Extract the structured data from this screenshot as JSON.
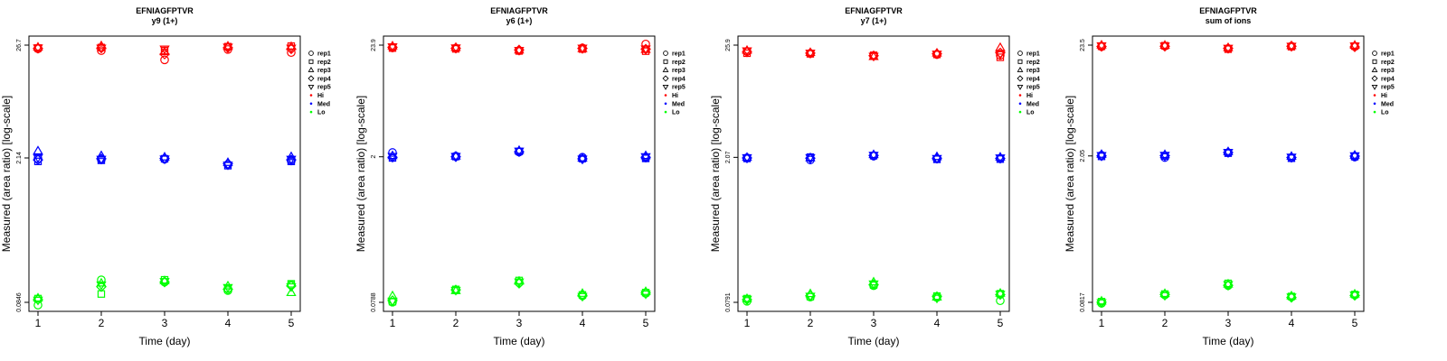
{
  "figure": {
    "levels": [
      {
        "name": "Hi",
        "color": "#ff0000"
      },
      {
        "name": "Med",
        "color": "#0000ff"
      },
      {
        "name": "Lo",
        "color": "#00ff00"
      }
    ],
    "replicates": [
      {
        "name": "rep1",
        "marker": "circle"
      },
      {
        "name": "rep2",
        "marker": "square"
      },
      {
        "name": "rep3",
        "marker": "triangle-up"
      },
      {
        "name": "rep4",
        "marker": "diamond"
      },
      {
        "name": "rep5",
        "marker": "triangle-down"
      }
    ]
  },
  "chart_data": [
    {
      "type": "scatter",
      "title": "EFNIAGFPTVR",
      "subtitle": "y9 (1+)",
      "xlabel": "Time (day)",
      "ylabel": "Measured (area ratio) [log-scale]",
      "yscale": "log",
      "ylim": [
        0.0846,
        26.7
      ],
      "yticks": [
        "0.0846",
        "2.14",
        "26.7"
      ],
      "x": [
        1,
        2,
        3,
        4,
        5
      ],
      "legend": [
        "rep1",
        "rep2",
        "rep3",
        "rep4",
        "rep5",
        "Hi",
        "Med",
        "Lo"
      ],
      "legend_position": "right",
      "series": [
        {
          "level": "Hi",
          "replicate": "rep1",
          "values": [
            24.6,
            23.6,
            19.2,
            24.2,
            22.6
          ]
        },
        {
          "level": "Hi",
          "replicate": "rep2",
          "values": [
            25.0,
            25.3,
            23.6,
            25.8,
            26.1
          ]
        },
        {
          "level": "Hi",
          "replicate": "rep3",
          "values": [
            25.5,
            26.3,
            23.0,
            26.1,
            25.8
          ]
        },
        {
          "level": "Hi",
          "replicate": "rep4",
          "values": [
            24.8,
            25.0,
            21.8,
            25.2,
            24.5
          ]
        },
        {
          "level": "Hi",
          "replicate": "rep5",
          "values": [
            25.1,
            25.0,
            24.5,
            25.6,
            25.0
          ]
        },
        {
          "level": "Med",
          "replicate": "rep1",
          "values": [
            2.1,
            2.06,
            2.08,
            1.85,
            2.0
          ]
        },
        {
          "level": "Med",
          "replicate": "rep2",
          "values": [
            1.98,
            2.03,
            2.1,
            1.8,
            1.98
          ]
        },
        {
          "level": "Med",
          "replicate": "rep3",
          "values": [
            2.5,
            2.25,
            2.18,
            1.93,
            2.2
          ]
        },
        {
          "level": "Med",
          "replicate": "rep4",
          "values": [
            2.05,
            2.1,
            2.12,
            1.88,
            2.05
          ]
        },
        {
          "level": "Med",
          "replicate": "rep5",
          "values": [
            2.15,
            2.08,
            2.09,
            1.83,
            2.08
          ]
        },
        {
          "level": "Lo",
          "replicate": "rep1",
          "values": [
            0.0795,
            0.14,
            0.133,
            0.11,
            0.125
          ]
        },
        {
          "level": "Lo",
          "replicate": "rep2",
          "values": [
            0.092,
            0.102,
            0.14,
            0.115,
            0.128
          ]
        },
        {
          "level": "Lo",
          "replicate": "rep3",
          "values": [
            0.093,
            0.13,
            0.137,
            0.122,
            0.105
          ]
        },
        {
          "level": "Lo",
          "replicate": "rep4",
          "values": [
            0.09,
            0.12,
            0.133,
            0.113,
            0.122
          ]
        },
        {
          "level": "Lo",
          "replicate": "rep5",
          "values": [
            0.089,
            0.125,
            0.135,
            0.118,
            0.12
          ]
        }
      ]
    },
    {
      "type": "scatter",
      "title": "EFNIAGFPTVR",
      "subtitle": "y6 (1+)",
      "xlabel": "Time (day)",
      "ylabel": "Measured (area ratio) [log-scale]",
      "yscale": "log",
      "ylim": [
        0.0788,
        23.9
      ],
      "yticks": [
        "0.0788",
        "2",
        "23.9"
      ],
      "x": [
        1,
        2,
        3,
        4,
        5
      ],
      "legend": [
        "rep1",
        "rep2",
        "rep3",
        "rep4",
        "rep5",
        "Hi",
        "Med",
        "Lo"
      ],
      "legend_position": "right",
      "series": [
        {
          "level": "Hi",
          "replicate": "rep1",
          "values": [
            22.5,
            22.4,
            21.1,
            22.5,
            24.5
          ]
        },
        {
          "level": "Hi",
          "replicate": "rep2",
          "values": [
            22.4,
            22.0,
            21.0,
            21.9,
            20.9
          ]
        },
        {
          "level": "Hi",
          "replicate": "rep3",
          "values": [
            23.4,
            22.7,
            21.4,
            22.1,
            21.7
          ]
        },
        {
          "level": "Hi",
          "replicate": "rep4",
          "values": [
            22.8,
            22.3,
            21.5,
            22.2,
            21.9
          ]
        },
        {
          "level": "Hi",
          "replicate": "rep5",
          "values": [
            23.1,
            22.5,
            21.3,
            22.4,
            22.0
          ]
        },
        {
          "level": "Med",
          "replicate": "rep1",
          "values": [
            2.2,
            2.03,
            2.22,
            1.98,
            1.95
          ]
        },
        {
          "level": "Med",
          "replicate": "rep2",
          "values": [
            1.95,
            2.01,
            2.25,
            1.92,
            1.93
          ]
        },
        {
          "level": "Med",
          "replicate": "rep3",
          "values": [
            2.05,
            2.03,
            2.3,
            1.94,
            2.05
          ]
        },
        {
          "level": "Med",
          "replicate": "rep4",
          "values": [
            1.98,
            2.0,
            2.24,
            1.91,
            1.98
          ]
        },
        {
          "level": "Med",
          "replicate": "rep5",
          "values": [
            2.02,
            2.02,
            2.27,
            1.9,
            2.01
          ]
        },
        {
          "level": "Lo",
          "replicate": "rep1",
          "values": [
            0.079,
            0.103,
            0.122,
            0.091,
            0.096
          ]
        },
        {
          "level": "Lo",
          "replicate": "rep2",
          "values": [
            0.08,
            0.105,
            0.128,
            0.093,
            0.098
          ]
        },
        {
          "level": "Lo",
          "replicate": "rep3",
          "values": [
            0.091,
            0.102,
            0.126,
            0.096,
            0.1
          ]
        },
        {
          "level": "Lo",
          "replicate": "rep4",
          "values": [
            0.082,
            0.104,
            0.12,
            0.092,
            0.097
          ]
        },
        {
          "level": "Lo",
          "replicate": "rep5",
          "values": [
            0.081,
            0.103,
            0.124,
            0.09,
            0.095
          ]
        }
      ]
    },
    {
      "type": "scatter",
      "title": "EFNIAGFPTVR",
      "subtitle": "y7 (1+)",
      "xlabel": "Time (day)",
      "ylabel": "Measured (area ratio) [log-scale]",
      "yscale": "log",
      "ylim": [
        0.0791,
        25.9
      ],
      "yticks": [
        "0.0791",
        "2.07",
        "25.9"
      ],
      "x": [
        1,
        2,
        3,
        4,
        5
      ],
      "legend": [
        "rep1",
        "rep2",
        "rep3",
        "rep4",
        "rep5",
        "Hi",
        "Med",
        "Lo"
      ],
      "legend_position": "right",
      "series": [
        {
          "level": "Hi",
          "replicate": "rep1",
          "values": [
            22.5,
            21.5,
            20.3,
            21.0,
            20.6
          ]
        },
        {
          "level": "Hi",
          "replicate": "rep2",
          "values": [
            21.6,
            21.3,
            20.6,
            21.0,
            19.7
          ]
        },
        {
          "level": "Hi",
          "replicate": "rep3",
          "values": [
            23.0,
            21.9,
            20.0,
            21.6,
            24.5
          ]
        },
        {
          "level": "Hi",
          "replicate": "rep4",
          "values": [
            22.2,
            21.6,
            20.4,
            21.3,
            21.8
          ]
        },
        {
          "level": "Hi",
          "replicate": "rep5",
          "values": [
            22.8,
            21.7,
            20.2,
            21.2,
            21.0
          ]
        },
        {
          "level": "Med",
          "replicate": "rep1",
          "values": [
            2.05,
            1.95,
            2.13,
            2.01,
            2.01
          ]
        },
        {
          "level": "Med",
          "replicate": "rep2",
          "values": [
            2.02,
            2.08,
            2.15,
            1.98,
            1.99
          ]
        },
        {
          "level": "Med",
          "replicate": "rep3",
          "values": [
            2.07,
            2.05,
            2.2,
            2.1,
            2.08
          ]
        },
        {
          "level": "Med",
          "replicate": "rep4",
          "values": [
            2.04,
            2.03,
            2.16,
            2.03,
            2.02
          ]
        },
        {
          "level": "Med",
          "replicate": "rep5",
          "values": [
            2.06,
            2.06,
            2.17,
            2.02,
            2.05
          ]
        },
        {
          "level": "Lo",
          "replicate": "rep1",
          "values": [
            0.081,
            0.089,
            0.115,
            0.088,
            0.082
          ]
        },
        {
          "level": "Lo",
          "replicate": "rep2",
          "values": [
            0.086,
            0.09,
            0.117,
            0.091,
            0.096
          ]
        },
        {
          "level": "Lo",
          "replicate": "rep3",
          "values": [
            0.086,
            0.096,
            0.125,
            0.089,
            0.097
          ]
        },
        {
          "level": "Lo",
          "replicate": "rep4",
          "values": [
            0.084,
            0.092,
            0.118,
            0.09,
            0.094
          ]
        },
        {
          "level": "Lo",
          "replicate": "rep5",
          "values": [
            0.085,
            0.091,
            0.12,
            0.087,
            0.095
          ]
        }
      ]
    },
    {
      "type": "scatter",
      "title": "EFNIAGFPTVR",
      "subtitle": "sum of ions",
      "xlabel": "Time (day)",
      "ylabel": "Measured (area ratio) [log-scale]",
      "yscale": "log",
      "ylim": [
        0.0817,
        23.5
      ],
      "yticks": [
        "0.0817",
        "2.05",
        "23.5"
      ],
      "x": [
        1,
        2,
        3,
        4,
        5
      ],
      "legend": [
        "rep1",
        "rep2",
        "rep3",
        "rep4",
        "rep5",
        "Hi",
        "Med",
        "Lo"
      ],
      "legend_position": "right",
      "series": [
        {
          "level": "Hi",
          "replicate": "rep1",
          "values": [
            22.7,
            23.0,
            21.8,
            23.0,
            22.8
          ]
        },
        {
          "level": "Hi",
          "replicate": "rep2",
          "values": [
            22.9,
            23.2,
            21.5,
            22.7,
            23.0
          ]
        },
        {
          "level": "Hi",
          "replicate": "rep3",
          "values": [
            23.5,
            23.4,
            22.2,
            23.2,
            23.4
          ]
        },
        {
          "level": "Hi",
          "replicate": "rep4",
          "values": [
            22.8,
            22.9,
            21.9,
            22.9,
            22.6
          ]
        },
        {
          "level": "Hi",
          "replicate": "rep5",
          "values": [
            23.2,
            23.1,
            22.0,
            23.0,
            23.1
          ]
        },
        {
          "level": "Med",
          "replicate": "rep1",
          "values": [
            2.08,
            1.98,
            2.2,
            1.97,
            2.0
          ]
        },
        {
          "level": "Med",
          "replicate": "rep2",
          "values": [
            2.03,
            2.05,
            2.18,
            1.95,
            2.02
          ]
        },
        {
          "level": "Med",
          "replicate": "rep3",
          "values": [
            2.12,
            2.11,
            2.25,
            2.03,
            2.08
          ]
        },
        {
          "level": "Med",
          "replicate": "rep4",
          "values": [
            2.05,
            2.06,
            2.21,
            1.98,
            2.04
          ]
        },
        {
          "level": "Med",
          "replicate": "rep5",
          "values": [
            2.07,
            2.08,
            2.22,
            2.0,
            2.06
          ]
        },
        {
          "level": "Lo",
          "replicate": "rep1",
          "values": [
            0.08,
            0.096,
            0.118,
            0.092,
            0.096
          ]
        },
        {
          "level": "Lo",
          "replicate": "rep2",
          "values": [
            0.083,
            0.098,
            0.124,
            0.093,
            0.097
          ]
        },
        {
          "level": "Lo",
          "replicate": "rep3",
          "values": [
            0.084,
            0.099,
            0.122,
            0.094,
            0.098
          ]
        },
        {
          "level": "Lo",
          "replicate": "rep4",
          "values": [
            0.082,
            0.097,
            0.119,
            0.091,
            0.095
          ]
        },
        {
          "level": "Lo",
          "replicate": "rep5",
          "values": [
            0.081,
            0.095,
            0.121,
            0.092,
            0.096
          ]
        }
      ]
    }
  ]
}
